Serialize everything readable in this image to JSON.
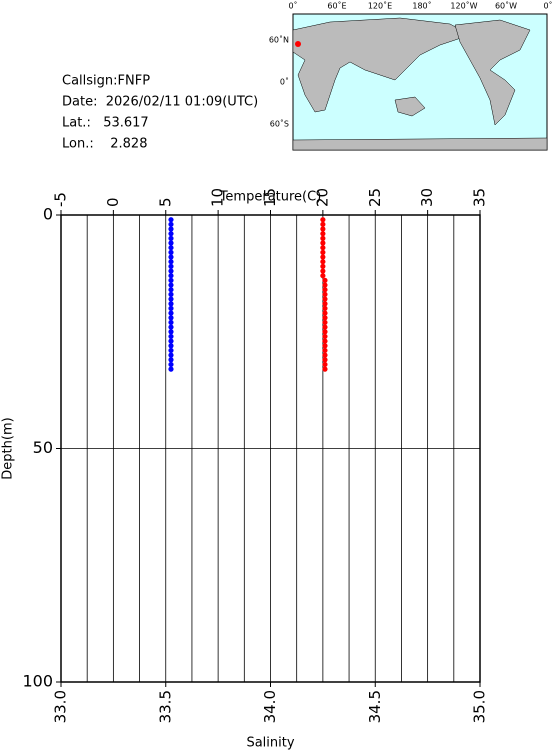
{
  "info": {
    "callsign": "Callsign:FNFP",
    "date": "Date:  2026/02/11 01:09(UTC)",
    "lat": "Lat.:   53.617",
    "lon": "Lon.:    2.828"
  },
  "map": {
    "xlabels": [
      "0˚",
      "60˚E",
      "120˚E",
      "180˚",
      "120˚W",
      "60˚W",
      "0˚"
    ],
    "ylabels": [
      "60˚N",
      "0˚",
      "60˚S"
    ]
  },
  "chart_data": {
    "type": "scatter",
    "xlabel": "Temperature(C)",
    "xlim": [
      -5,
      35
    ],
    "xticks": [
      -5,
      0,
      5,
      10,
      15,
      20,
      25,
      30,
      35
    ],
    "xminor": [
      -2.5,
      2.5,
      7.5,
      12.5,
      17.5,
      22.5,
      27.5,
      32.5
    ],
    "x2label": "Salinity",
    "x2lim": [
      33,
      35
    ],
    "x2ticks": [
      {
        "value": 33,
        "label": "33.0"
      },
      {
        "value": 33.5,
        "label": "33.5"
      },
      {
        "value": 34,
        "label": "34.0"
      },
      {
        "value": 34.5,
        "label": "34.5"
      },
      {
        "value": 35,
        "label": "35.0"
      }
    ],
    "ylabel": "Depth(m)",
    "ylim": [
      0,
      100
    ],
    "yticks": [
      0,
      50,
      100
    ],
    "grid": true,
    "depth": [
      1,
      2,
      3,
      4,
      5,
      6,
      7,
      8,
      9,
      10,
      11,
      12,
      13,
      14,
      15,
      16,
      17,
      18,
      19,
      20,
      21,
      22,
      23,
      24,
      25,
      26,
      27,
      28,
      29,
      30,
      31,
      32,
      33
    ],
    "series": [
      {
        "color": "#0000ff",
        "axis": "x",
        "values": [
          5.5,
          5.5,
          5.5,
          5.5,
          5.5,
          5.5,
          5.5,
          5.5,
          5.5,
          5.5,
          5.5,
          5.5,
          5.5,
          5.5,
          5.5,
          5.5,
          5.5,
          5.5,
          5.5,
          5.5,
          5.5,
          5.5,
          5.5,
          5.5,
          5.5,
          5.5,
          5.5,
          5.5,
          5.5,
          5.5,
          5.5,
          5.5,
          5.5
        ]
      },
      {
        "color": "#ff0000",
        "axis": "x2",
        "values": [
          34.25,
          34.25,
          34.25,
          34.25,
          34.25,
          34.25,
          34.25,
          34.25,
          34.25,
          34.25,
          34.25,
          34.25,
          34.25,
          34.26,
          34.26,
          34.26,
          34.26,
          34.26,
          34.26,
          34.26,
          34.26,
          34.26,
          34.26,
          34.26,
          34.26,
          34.26,
          34.26,
          34.26,
          34.26,
          34.26,
          34.26,
          34.26,
          34.26
        ]
      }
    ]
  }
}
